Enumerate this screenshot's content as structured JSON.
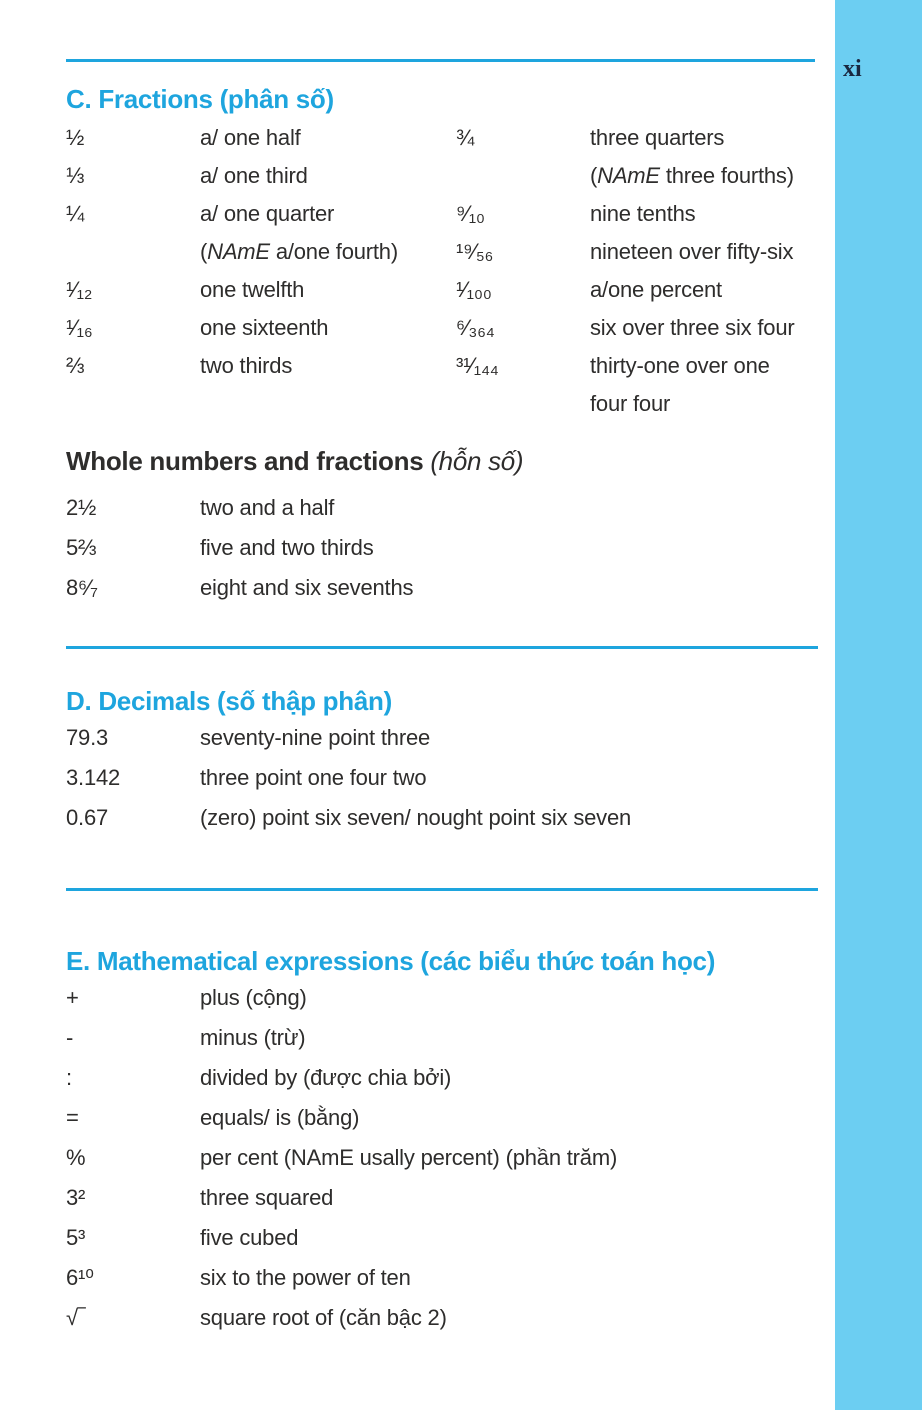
{
  "page_number": "xi",
  "colors": {
    "accent": "#1ea5de",
    "sidebar": "#6ccef2",
    "page_number_color": "#1a2840",
    "body_text": "#2e2d2c"
  },
  "section_c": {
    "heading": "C. Fractions (phân số)",
    "rows": [
      [
        "½",
        "a/ one half",
        "¾",
        "three quarters"
      ],
      [
        "⅓",
        "a/ one third",
        "",
        [
          "(",
          {
            "i": "NAmE"
          },
          " three fourths)"
        ]
      ],
      [
        "¼",
        "a/ one quarter",
        "⁹⁄₁₀",
        "nine tenths"
      ],
      [
        "",
        [
          "(",
          {
            "i": "NAmE"
          },
          " a/one fourth)"
        ],
        "¹⁹⁄₅₆",
        "nineteen over fifty-six"
      ],
      [
        "¹⁄₁₂",
        "one twelfth",
        "¹⁄₁₀₀",
        "a/one percent"
      ],
      [
        "¹⁄₁₆",
        "one sixteenth",
        "⁶⁄₃₆₄",
        "six over three six four"
      ],
      [
        "⅔",
        "two thirds",
        "³¹⁄₁₄₄",
        "thirty-one over one"
      ],
      [
        "",
        "",
        "",
        "four four"
      ]
    ]
  },
  "section_whole": {
    "heading_bold": "Whole numbers and fractions ",
    "heading_italic": "(hỗn số)",
    "rows": [
      [
        "2½",
        "two and a half"
      ],
      [
        "5⅔",
        "five and two thirds"
      ],
      [
        "8⁶⁄₇",
        "eight and six sevenths"
      ]
    ]
  },
  "section_d": {
    "heading": "D. Decimals (số thập phân)",
    "rows": [
      [
        "79.3",
        "seventy-nine point three"
      ],
      [
        "3.142",
        "three point one four two"
      ],
      [
        "0.67",
        "(zero) point six seven/ nought point six seven"
      ]
    ]
  },
  "section_e": {
    "heading": "E. Mathematical expressions (các biểu thức toán học)",
    "rows": [
      [
        "+",
        "plus (cộng)"
      ],
      [
        "-",
        "minus (trừ)"
      ],
      [
        ":",
        "divided by (được chia bởi)"
      ],
      [
        "=",
        "equals/ is (bằng)"
      ],
      [
        "%",
        "per cent (NAmE usally percent) (phần trăm)"
      ],
      [
        "3²",
        "three squared"
      ],
      [
        "5³",
        "five cubed"
      ],
      [
        "6¹⁰",
        "six to the power of ten"
      ],
      [
        "√‾",
        "square root of (căn bậc 2)"
      ]
    ]
  }
}
